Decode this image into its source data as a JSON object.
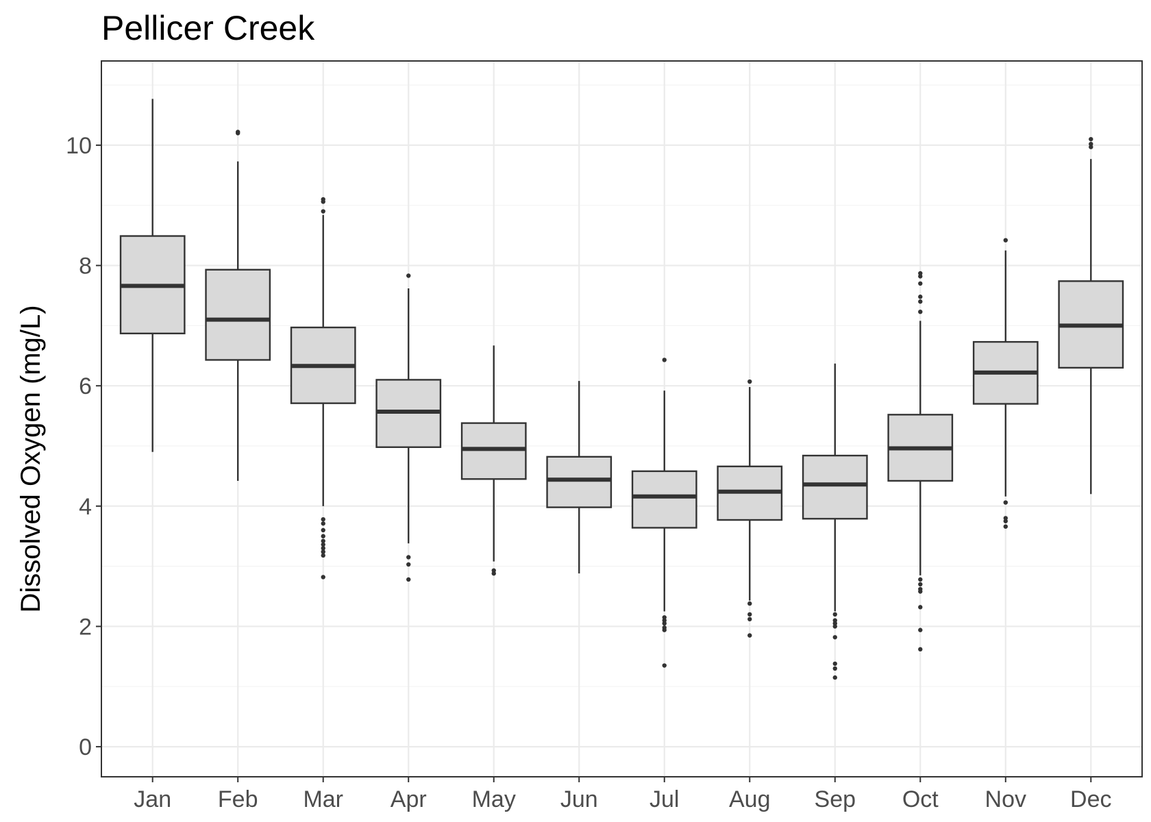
{
  "chart_data": {
    "type": "boxplot",
    "title": "Pellicer Creek",
    "xlabel": "",
    "ylabel": "Dissolved Oxygen (mg/L)",
    "ylim": [
      -0.5,
      11.4
    ],
    "yticks": [
      0,
      2,
      4,
      6,
      8,
      10
    ],
    "yticks_minor": [
      1,
      3,
      5,
      7,
      9,
      11
    ],
    "grid": true,
    "legend": "none",
    "categories": [
      "Jan",
      "Feb",
      "Mar",
      "Apr",
      "May",
      "Jun",
      "Jul",
      "Aug",
      "Sep",
      "Oct",
      "Nov",
      "Dec"
    ],
    "boxes": [
      {
        "month": "Jan",
        "min": 4.9,
        "q1": 6.87,
        "median": 7.66,
        "q3": 8.49,
        "max": 10.77,
        "outliers": []
      },
      {
        "month": "Feb",
        "min": 4.42,
        "q1": 6.43,
        "median": 7.1,
        "q3": 7.93,
        "max": 9.73,
        "outliers": [
          10.2,
          10.22
        ]
      },
      {
        "month": "Mar",
        "min": 4.0,
        "q1": 5.71,
        "median": 6.33,
        "q3": 6.97,
        "max": 8.84,
        "outliers": [
          9.06,
          9.1,
          8.9,
          3.78,
          3.71,
          3.6,
          3.5,
          3.42,
          3.36,
          3.3,
          3.24,
          3.18,
          2.82
        ]
      },
      {
        "month": "Apr",
        "min": 3.38,
        "q1": 4.98,
        "median": 5.57,
        "q3": 6.1,
        "max": 7.62,
        "outliers": [
          7.83,
          3.15,
          3.03,
          2.78
        ]
      },
      {
        "month": "May",
        "min": 3.08,
        "q1": 4.45,
        "median": 4.95,
        "q3": 5.38,
        "max": 6.67,
        "outliers": [
          2.93,
          2.88
        ]
      },
      {
        "month": "Jun",
        "min": 2.88,
        "q1": 3.98,
        "median": 4.44,
        "q3": 4.82,
        "max": 6.08,
        "outliers": []
      },
      {
        "month": "Jul",
        "min": 2.25,
        "q1": 3.64,
        "median": 4.16,
        "q3": 4.58,
        "max": 5.92,
        "outliers": [
          6.43,
          2.15,
          2.1,
          2.05,
          1.98,
          1.94,
          1.35
        ]
      },
      {
        "month": "Aug",
        "min": 2.43,
        "q1": 3.77,
        "median": 4.24,
        "q3": 4.66,
        "max": 5.98,
        "outliers": [
          6.07,
          2.38,
          2.2,
          2.12,
          1.85
        ]
      },
      {
        "month": "Sep",
        "min": 2.25,
        "q1": 3.79,
        "median": 4.36,
        "q3": 4.84,
        "max": 6.37,
        "outliers": [
          2.2,
          2.1,
          2.05,
          2.0,
          1.82,
          1.38,
          1.3,
          1.15
        ]
      },
      {
        "month": "Oct",
        "min": 2.85,
        "q1": 4.42,
        "median": 4.96,
        "q3": 5.52,
        "max": 7.08,
        "outliers": [
          7.87,
          7.82,
          7.7,
          7.48,
          7.4,
          7.23,
          2.78,
          2.7,
          2.62,
          2.58,
          2.32,
          1.94,
          1.62
        ]
      },
      {
        "month": "Nov",
        "min": 4.16,
        "q1": 5.7,
        "median": 6.22,
        "q3": 6.73,
        "max": 8.25,
        "outliers": [
          8.42,
          4.06,
          3.8,
          3.75,
          3.66
        ]
      },
      {
        "month": "Dec",
        "min": 4.2,
        "q1": 6.3,
        "median": 7.0,
        "q3": 7.74,
        "max": 9.77,
        "outliers": [
          10.1,
          10.02,
          9.97
        ]
      }
    ]
  }
}
